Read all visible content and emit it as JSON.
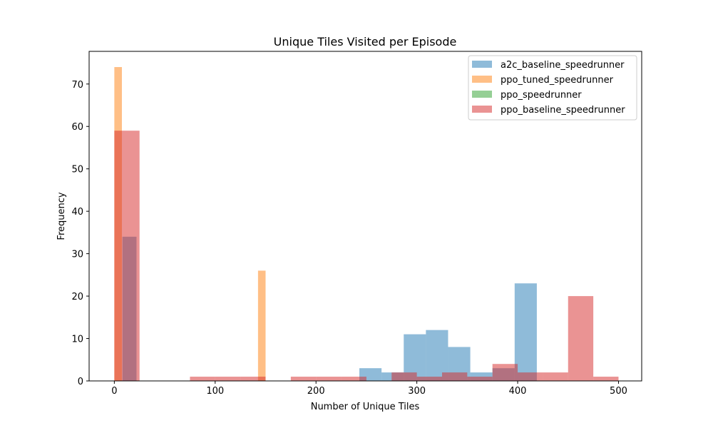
{
  "chart_data": {
    "type": "histogram",
    "title": "Unique Tiles Visited per Episode",
    "xlabel": "Number of Unique Tiles",
    "ylabel": "Frequency",
    "xlim": [
      -25,
      523
    ],
    "ylim": [
      0,
      77.7
    ],
    "xticks": [
      0,
      100,
      200,
      300,
      400,
      500
    ],
    "yticks": [
      0,
      10,
      20,
      30,
      40,
      50,
      60,
      70
    ],
    "legend_position": "top-right",
    "bar_alpha": 0.5,
    "series": [
      {
        "name": "a2c_baseline_speedrunner",
        "color": "#1f77b4",
        "bins": [
          {
            "x0": 8,
            "x1": 22,
            "count": 34
          },
          {
            "x0": 243,
            "x1": 265,
            "count": 3
          },
          {
            "x0": 265,
            "x1": 287,
            "count": 2
          },
          {
            "x0": 287,
            "x1": 309,
            "count": 11
          },
          {
            "x0": 309,
            "x1": 331,
            "count": 12
          },
          {
            "x0": 331,
            "x1": 353,
            "count": 8
          },
          {
            "x0": 353,
            "x1": 375,
            "count": 2
          },
          {
            "x0": 375,
            "x1": 397,
            "count": 3
          },
          {
            "x0": 397,
            "x1": 419,
            "count": 23
          }
        ]
      },
      {
        "name": "ppo_tuned_speedrunner",
        "color": "#ff7f0e",
        "bins": [
          {
            "x0": 0,
            "x1": 7.5,
            "count": 74
          },
          {
            "x0": 142.5,
            "x1": 150,
            "count": 26
          }
        ]
      },
      {
        "name": "ppo_speedrunner",
        "color": "#2ca02c",
        "bins": []
      },
      {
        "name": "ppo_baseline_speedrunner",
        "color": "#d62728",
        "bins": [
          {
            "x0": 0,
            "x1": 25,
            "count": 59
          },
          {
            "x0": 75,
            "x1": 100,
            "count": 1
          },
          {
            "x0": 100,
            "x1": 125,
            "count": 1
          },
          {
            "x0": 125,
            "x1": 150,
            "count": 1
          },
          {
            "x0": 175,
            "x1": 200,
            "count": 1
          },
          {
            "x0": 200,
            "x1": 225,
            "count": 1
          },
          {
            "x0": 225,
            "x1": 250,
            "count": 1
          },
          {
            "x0": 275,
            "x1": 300,
            "count": 2
          },
          {
            "x0": 300,
            "x1": 325,
            "count": 1
          },
          {
            "x0": 325,
            "x1": 350,
            "count": 2
          },
          {
            "x0": 350,
            "x1": 375,
            "count": 1
          },
          {
            "x0": 375,
            "x1": 400,
            "count": 4
          },
          {
            "x0": 400,
            "x1": 425,
            "count": 2
          },
          {
            "x0": 425,
            "x1": 450,
            "count": 2
          },
          {
            "x0": 450,
            "x1": 475,
            "count": 20
          },
          {
            "x0": 475,
            "x1": 500,
            "count": 1
          }
        ]
      }
    ]
  }
}
